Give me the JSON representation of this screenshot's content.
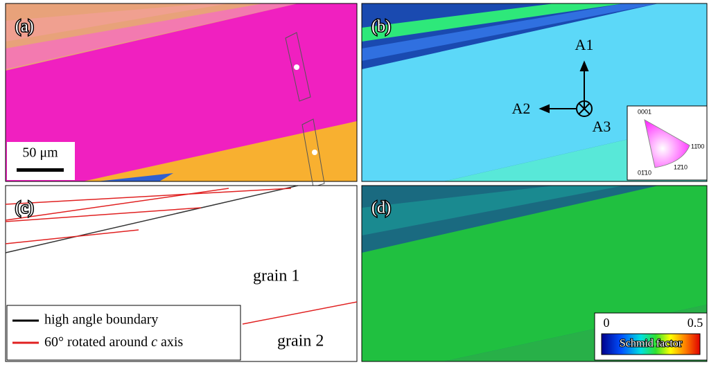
{
  "panels": {
    "a": {
      "label": "(a)",
      "scale_bar": "50 μm"
    },
    "b": {
      "label": "(b)",
      "axes": [
        "A1",
        "A2",
        "A3"
      ],
      "ipf": {
        "top": "0001",
        "right": "11̄00",
        "bottom_left": "01̄10",
        "bottom_right": "12̄10"
      }
    },
    "c": {
      "label": "(c)",
      "grain_1": "grain 1",
      "grain_2": "grain 2",
      "legend": {
        "high_angle": "high angle boundary",
        "rotated": {
          "prefix": "60° rotated around ",
          "axis": "c",
          "suffix": " axis"
        }
      }
    },
    "d": {
      "label": "(d)",
      "scale_min": "0",
      "scale_max": "0.5",
      "scale_title": "Schmid factor"
    }
  }
}
